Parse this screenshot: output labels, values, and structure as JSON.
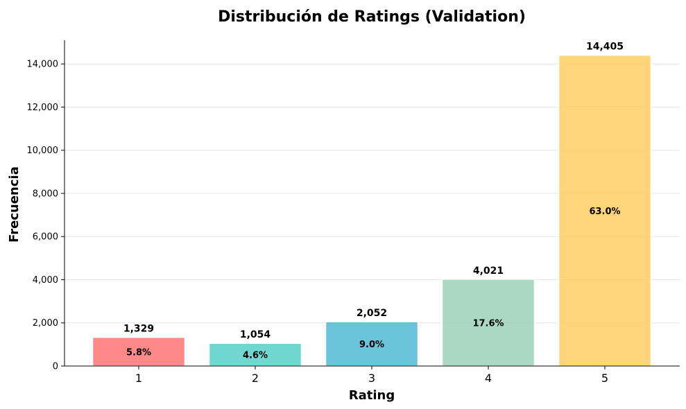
{
  "chart_data": {
    "type": "bar",
    "title": "Distribución de Ratings (Validation)",
    "xlabel": "Rating",
    "ylabel": "Frecuencia",
    "categories": [
      "1",
      "2",
      "3",
      "4",
      "5"
    ],
    "values": [
      1329,
      1054,
      2052,
      4021,
      14405
    ],
    "value_labels": [
      "1,329",
      "1,054",
      "2,052",
      "4,021",
      "14,405"
    ],
    "percent_labels": [
      "5.8%",
      "4.6%",
      "9.0%",
      "17.6%",
      "63.0%"
    ],
    "colors": [
      "#ff6b6b",
      "#4ecdc4",
      "#45b7d1",
      "#96ceb4",
      "#feca57"
    ],
    "ylim": [
      0,
      15100
    ],
    "yticks": [
      0,
      2000,
      4000,
      6000,
      8000,
      10000,
      12000,
      14000
    ],
    "ytick_labels": [
      "0",
      "2,000",
      "4,000",
      "6,000",
      "8,000",
      "10,000",
      "12,000",
      "14,000"
    ],
    "grid": "y",
    "legend": "none"
  }
}
